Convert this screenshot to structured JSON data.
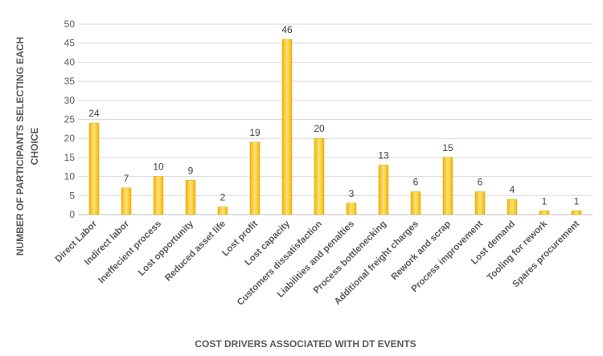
{
  "chart_data": {
    "type": "bar",
    "xlabel": "COST DRIVERS ASSOCIATED WITH DT EVENTS",
    "ylabel_lines": [
      "NUMBER OF PARTICIPANTS SELECTING EACH",
      "CHOICE"
    ],
    "ylim": [
      0,
      50
    ],
    "yticks": [
      0,
      5,
      10,
      15,
      20,
      25,
      30,
      35,
      40,
      45,
      50
    ],
    "grid": true,
    "bar_color": "#FFC000",
    "bar_highlight_color": "#FFE27A",
    "categories": [
      "Direct Labor",
      "Indirect labor",
      "Ineffecient process",
      "Lost opportunity",
      "Reduced asset life",
      "Lost profit",
      "Lost capacity",
      "Customers dissatisfaction",
      "Liabilities and penalties",
      "Process bottlenecking",
      "Additional freight charges",
      "Rework and scrap",
      "Process  improvement",
      "Lost demand",
      "Tooling for rework",
      "Spares procurement"
    ],
    "values": [
      24,
      7,
      10,
      9,
      2,
      19,
      46,
      20,
      3,
      13,
      6,
      15,
      6,
      4,
      1,
      1
    ]
  }
}
